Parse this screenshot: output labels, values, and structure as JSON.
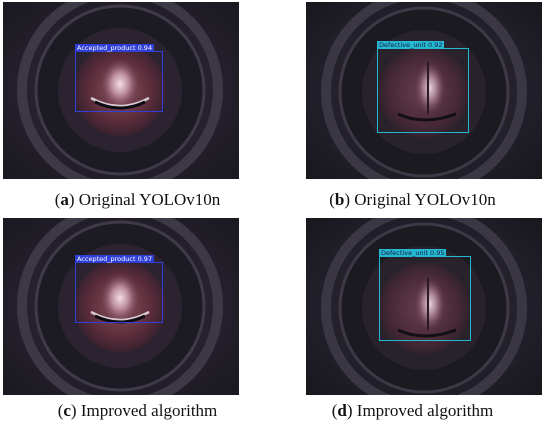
{
  "panels": [
    {
      "id": "a",
      "caption_letter": "a",
      "caption_text": "Original YOLOv10n",
      "detection": {
        "label": "Accepted_product",
        "score": "0.94",
        "color": "#2f3fd8",
        "label_text_color": "#ffffff"
      }
    },
    {
      "id": "b",
      "caption_letter": "b",
      "caption_text": "Original YOLOv10n",
      "detection": {
        "label": "Defective_unit",
        "score": "0.92",
        "color": "#25b8d2",
        "label_text_color": "#1a1a40"
      }
    },
    {
      "id": "c",
      "caption_letter": "c",
      "caption_text": "Improved algorithm",
      "detection": {
        "label": "Accepted_product",
        "score": "0.97",
        "color": "#2f3fd8",
        "label_text_color": "#ffffff"
      }
    },
    {
      "id": "d",
      "caption_letter": "d",
      "caption_text": "Improved algorithm",
      "detection": {
        "label": "Defective_unit",
        "score": "0.95",
        "color": "#25b8d2",
        "label_text_color": "#1a1a40"
      }
    }
  ]
}
